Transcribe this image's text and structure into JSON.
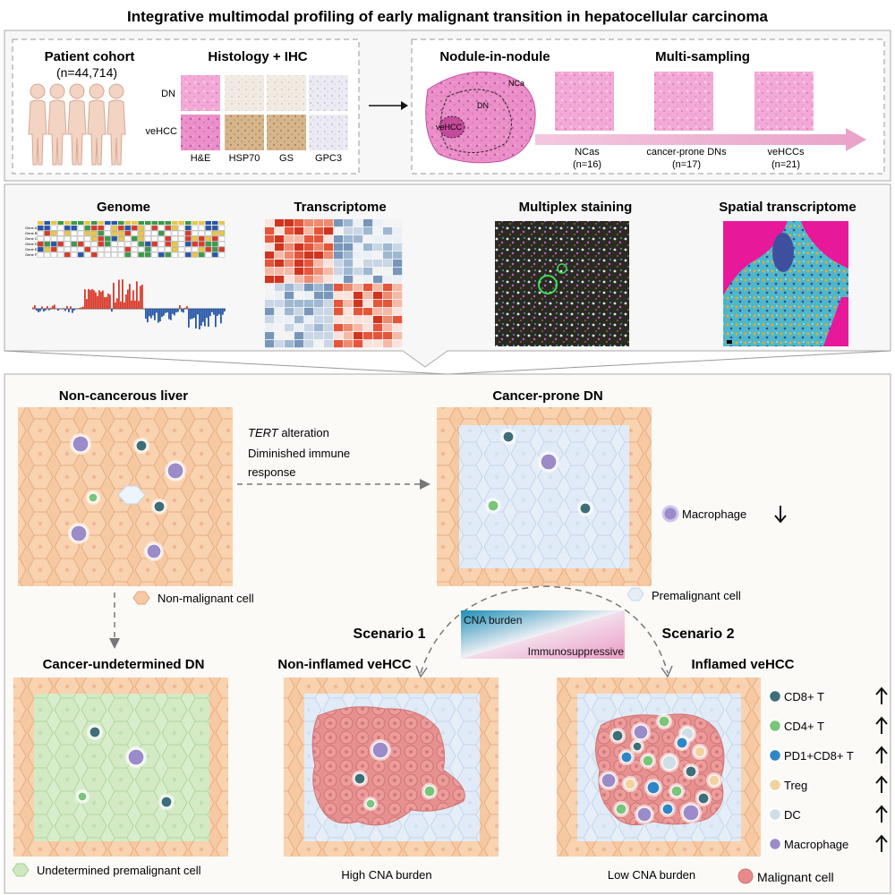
{
  "title": "Integrative multimodal profiling of early malignant transition in hepatocellular carcinoma",
  "top": {
    "patient": {
      "heading": "Patient cohort",
      "count": "(n=44,714)"
    },
    "histology": {
      "heading": "Histology + IHC",
      "rows": [
        "DN",
        "veHCC"
      ],
      "stains": [
        "H&E",
        "HSP70",
        "GS",
        "GPC3"
      ]
    },
    "nodule": {
      "heading": "Nodule-in-nodule",
      "labels": [
        "NCa",
        "DN",
        "veHCC"
      ]
    },
    "multisampling": {
      "heading": "Multi-sampling",
      "groups": [
        {
          "name": "NCas",
          "n": "(n=16)"
        },
        {
          "name": "cancer-prone DNs",
          "n": "(n=17)"
        },
        {
          "name": "veHCCs",
          "n": "(n=21)"
        }
      ]
    }
  },
  "middle": {
    "genome": {
      "heading": "Genome",
      "genes": [
        "Gene A",
        "Gene B",
        "Gene C",
        "Gene D",
        "Gene E",
        "Gene F"
      ]
    },
    "transcriptome": {
      "heading": "Transcriptome"
    },
    "multiplex": {
      "heading": "Multiplex staining"
    },
    "spatial": {
      "heading": "Spatial transcriptome"
    }
  },
  "bottom": {
    "noncancerous": {
      "heading": "Non-cancerous liver",
      "legend": "Non-malignant cell"
    },
    "transition": {
      "emphasis": "TERT",
      "line1": " alteration",
      "line2": "Diminished immune",
      "line3": "response"
    },
    "prone": {
      "heading": "Cancer-prone DN",
      "legend": "Premalignant cell",
      "macrophage": "Macrophage"
    },
    "gradient": {
      "top": "CNA burden",
      "bottom": "Immunosuppressive"
    },
    "scenario1": "Scenario 1",
    "scenario2": "Scenario 2",
    "undetermined": {
      "heading": "Cancer-undetermined DN",
      "legend": "Undetermined premalignant cell"
    },
    "noninflamed": {
      "heading": "Non-inflamed veHCC",
      "caption": "High CNA burden"
    },
    "inflamed": {
      "heading": "Inflamed veHCC",
      "caption": "Low CNA burden",
      "malignant": "Malignant cell"
    },
    "immune_legend": [
      {
        "label": "CD8+ T",
        "color": "#3e6e78"
      },
      {
        "label": "CD4+ T",
        "color": "#79c57a"
      },
      {
        "label": "PD1+CD8+ T",
        "color": "#2f86c7"
      },
      {
        "label": "Treg",
        "color": "#f2d3a0"
      },
      {
        "label": "DC",
        "color": "#cfdde6"
      },
      {
        "label": "Macrophage",
        "color": "#9b8cc9"
      }
    ]
  },
  "colors": {
    "hepatocyte": "#f6c9a2",
    "hepatocyte_edge": "#e0a77c",
    "premalignant": "#dbe8f6",
    "undetermined": "#cfe8c2",
    "malignant": "#e8898a",
    "accent_pink": "#e85a9e",
    "cna_blue": "#1f8fb8"
  }
}
